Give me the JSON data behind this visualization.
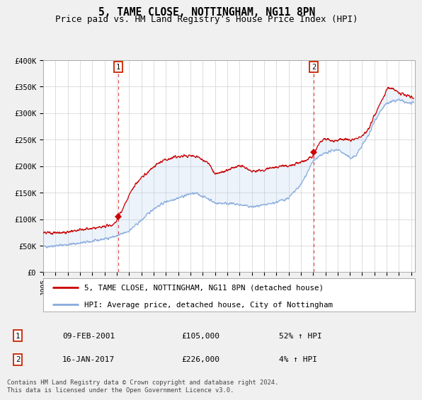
{
  "title": "5, TAME CLOSE, NOTTINGHAM, NG11 8PN",
  "subtitle": "Price paid vs. HM Land Registry's House Price Index (HPI)",
  "ylim": [
    0,
    400000
  ],
  "xlim_start": 1995.0,
  "xlim_end": 2025.3,
  "yticks": [
    0,
    50000,
    100000,
    150000,
    200000,
    250000,
    300000,
    350000,
    400000
  ],
  "ytick_labels": [
    "£0",
    "£50K",
    "£100K",
    "£150K",
    "£200K",
    "£250K",
    "£300K",
    "£350K",
    "£400K"
  ],
  "sale1_x": 2001.11,
  "sale1_y": 105000,
  "sale2_x": 2017.04,
  "sale2_y": 226000,
  "sale1_date": "09-FEB-2001",
  "sale1_price": "£105,000",
  "sale1_hpi": "52% ↑ HPI",
  "sale2_date": "16-JAN-2017",
  "sale2_price": "£226,000",
  "sale2_hpi": "4% ↑ HPI",
  "line1_color": "#cc0000",
  "line2_color": "#88aadd",
  "vline_color": "#cc0000",
  "legend1_label": "5, TAME CLOSE, NOTTINGHAM, NG11 8PN (detached house)",
  "legend2_label": "HPI: Average price, detached house, City of Nottingham",
  "footnote": "Contains HM Land Registry data © Crown copyright and database right 2024.\nThis data is licensed under the Open Government Licence v3.0.",
  "title_fontsize": 10.5,
  "subtitle_fontsize": 9
}
